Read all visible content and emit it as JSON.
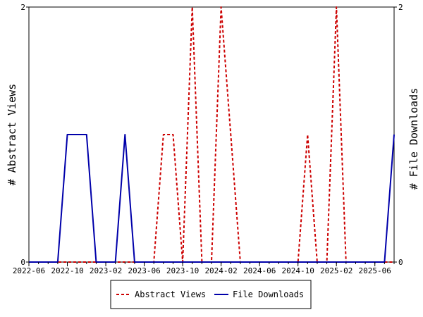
{
  "chart_data": {
    "type": "line",
    "x_tick_labels": [
      "2022-06",
      "2022-10",
      "2023-02",
      "2023-06",
      "2023-10",
      "2024-02",
      "2024-06",
      "2024-10",
      "2025-02",
      "2025-06"
    ],
    "x_range": [
      "2022-06",
      "2025-08"
    ],
    "ylabel_left": "# Abstract Views",
    "ylabel_right": "# File Downloads",
    "ylim_left": [
      0,
      2
    ],
    "ylim_right": [
      0,
      2
    ],
    "y_tick_labels_left": [
      "0",
      "2"
    ],
    "y_tick_labels_right": [
      "0",
      "2"
    ],
    "grid": false,
    "legend_position": "bottom",
    "series": [
      {
        "name": "Abstract Views",
        "axis": "left",
        "color": "#cc0000",
        "style": "dashed",
        "points": [
          [
            "2022-06",
            0
          ],
          [
            "2023-07",
            0
          ],
          [
            "2023-08",
            1
          ],
          [
            "2023-09",
            1
          ],
          [
            "2023-10",
            0
          ],
          [
            "2023-11",
            2
          ],
          [
            "2023-12",
            0
          ],
          [
            "2024-01",
            0
          ],
          [
            "2024-02",
            2
          ],
          [
            "2024-03",
            1
          ],
          [
            "2024-04",
            0
          ],
          [
            "2024-10",
            0
          ],
          [
            "2024-11",
            1
          ],
          [
            "2024-12",
            0
          ],
          [
            "2025-01",
            0
          ],
          [
            "2025-02",
            2
          ],
          [
            "2025-03",
            0
          ],
          [
            "2025-08",
            0
          ]
        ]
      },
      {
        "name": "File Downloads",
        "axis": "right",
        "color": "#0000aa",
        "style": "solid",
        "points": [
          [
            "2022-06",
            0
          ],
          [
            "2022-09",
            0
          ],
          [
            "2022-10",
            1
          ],
          [
            "2022-12",
            1
          ],
          [
            "2023-01",
            0
          ],
          [
            "2023-03",
            0
          ],
          [
            "2023-04",
            1
          ],
          [
            "2023-05",
            0
          ],
          [
            "2025-07",
            0
          ],
          [
            "2025-08",
            1
          ]
        ]
      }
    ]
  }
}
